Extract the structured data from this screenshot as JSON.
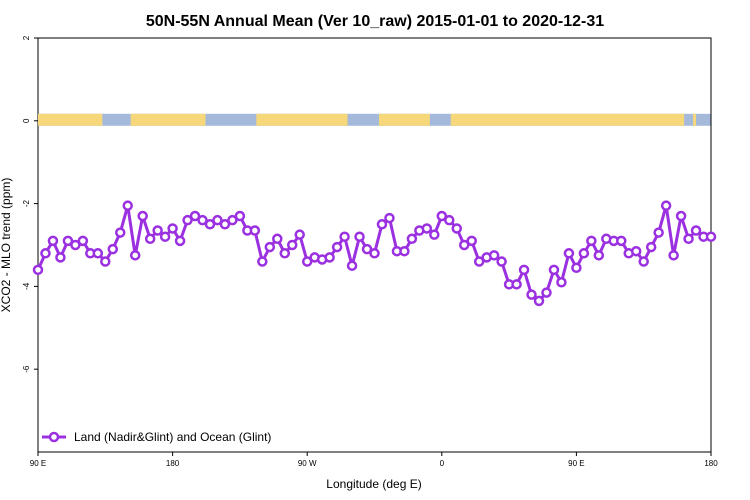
{
  "chart_data": {
    "type": "line",
    "title": "50N-55N Annual Mean (Ver 10_raw)   2015-01-01 to 2020-12-31",
    "xlabel": "Longitude (deg E)",
    "ylabel": "XCO2 - MLO trend (ppm)",
    "x_ticks": [
      {
        "value": 90,
        "label": "90 E"
      },
      {
        "value": 180,
        "label": "180"
      },
      {
        "value": 270,
        "label": "90 W"
      },
      {
        "value": 360,
        "label": "0"
      },
      {
        "value": 450,
        "label": "90 E"
      },
      {
        "value": 540,
        "label": "180"
      }
    ],
    "y_ticks": [
      {
        "value": 2,
        "label": "2"
      },
      {
        "value": 0,
        "label": "0"
      },
      {
        "value": -2,
        "label": "-2"
      },
      {
        "value": -4,
        "label": "-4"
      },
      {
        "value": -6,
        "label": "-6"
      }
    ],
    "xlim": [
      90,
      540
    ],
    "ylim": [
      -8,
      2
    ],
    "grid": false,
    "legend_position": "bottom-left",
    "series": [
      {
        "name": "Land (Nadir&Glint) and Ocean (Glint)",
        "color": "#9b30e0",
        "x": [
          90,
          95,
          100,
          105,
          110,
          115,
          120,
          125,
          130,
          135,
          140,
          145,
          150,
          155,
          160,
          165,
          170,
          175,
          180,
          185,
          190,
          195,
          200,
          205,
          210,
          215,
          220,
          225,
          230,
          235,
          240,
          245,
          250,
          255,
          260,
          265,
          270,
          275,
          280,
          285,
          290,
          295,
          300,
          305,
          310,
          315,
          320,
          325,
          330,
          335,
          340,
          345,
          350,
          355,
          360,
          365,
          370,
          375,
          380,
          385,
          390,
          395,
          400,
          405,
          410,
          415,
          420,
          425,
          430,
          435,
          440,
          445,
          450,
          455,
          460,
          465,
          470,
          475,
          480,
          485,
          490,
          495,
          500,
          505,
          510,
          515,
          520,
          525,
          530,
          535,
          540
        ],
        "y": [
          -3.6,
          -3.2,
          -2.9,
          -3.3,
          -2.9,
          -3.0,
          -2.9,
          -3.2,
          -3.2,
          -3.4,
          -3.1,
          -2.7,
          -2.05,
          -3.25,
          -2.3,
          -2.85,
          -2.65,
          -2.8,
          -2.6,
          -2.9,
          -2.4,
          -2.3,
          -2.4,
          -2.5,
          -2.4,
          -2.5,
          -2.4,
          -2.3,
          -2.65,
          -2.65,
          -3.4,
          -3.05,
          -2.85,
          -3.2,
          -3.0,
          -2.75,
          -3.4,
          -3.3,
          -3.35,
          -3.3,
          -3.05,
          -2.8,
          -3.5,
          -2.8,
          -3.1,
          -3.2,
          -2.5,
          -2.35,
          -3.15,
          -3.15,
          -2.85,
          -2.65,
          -2.6,
          -2.75,
          -2.3,
          -2.4,
          -2.6,
          -3.0,
          -2.9,
          -3.4,
          -3.3,
          -3.25,
          -3.4,
          -3.95,
          -3.95,
          -3.6,
          -4.2,
          -4.35,
          -4.15,
          -3.6,
          -3.9,
          -3.2,
          -3.55,
          -3.2,
          -2.9,
          -3.25,
          -2.85,
          -2.9,
          -2.9,
          -3.2,
          -3.15,
          -3.4,
          -3.05,
          -2.7,
          -2.05,
          -3.25,
          -2.3,
          -2.85,
          -2.65,
          -2.8,
          -2.8
        ]
      }
    ],
    "landmask_colors": {
      "land": "#f6d77a",
      "ocean": "#a5b9da"
    }
  }
}
